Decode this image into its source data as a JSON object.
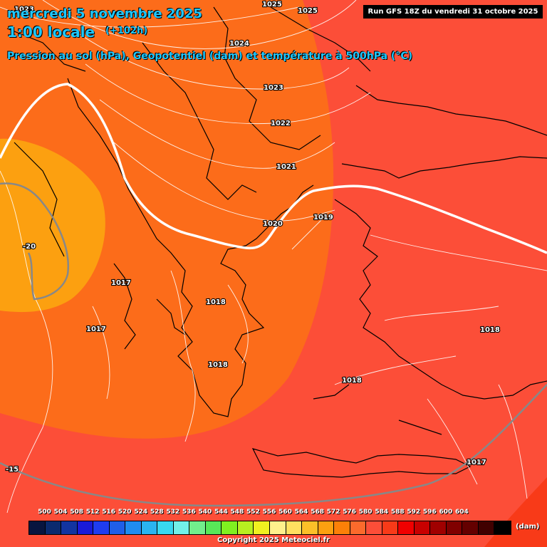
{
  "header": {
    "date": "mercredi 5 novembre 2025",
    "hour": "1:00 locale",
    "lead": "(+102h)",
    "description": "Pression au sol (hPa), Geopotentiel (dam) et température à 500hPa (°C)",
    "run": "Run GFS 18Z du vendredi 31 octobre 2025"
  },
  "pressure_labels": [
    "1025",
    "1025",
    "1024",
    "1023",
    "1023",
    "1022",
    "1021",
    "1020",
    "1019",
    "1018",
    "1018",
    "1018",
    "1018",
    "1018",
    "1017",
    "1017",
    "1017"
  ],
  "temperature_labels": [
    "-20",
    "-15"
  ],
  "legend": {
    "ticks": [
      "500",
      "504",
      "508",
      "512",
      "516",
      "520",
      "524",
      "528",
      "532",
      "536",
      "540",
      "544",
      "548",
      "552",
      "556",
      "560",
      "564",
      "568",
      "572",
      "576",
      "580",
      "584",
      "588",
      "592",
      "596",
      "600",
      "604"
    ],
    "colors": [
      "#08153f",
      "#0a2a6e",
      "#1234a0",
      "#1a1ad8",
      "#1f3cf0",
      "#1f5ee8",
      "#1f8cf0",
      "#2ab4f0",
      "#38d8f0",
      "#72f0e8",
      "#72ee8c",
      "#58e858",
      "#80f020",
      "#b8f020",
      "#f0f020",
      "#fff08c",
      "#ffe060",
      "#fcc028",
      "#fca010",
      "#fc8008",
      "#fc6a2c",
      "#fc4e38",
      "#f83a18",
      "#f00000",
      "#c80000",
      "#a00000",
      "#800000",
      "#640000",
      "#400000",
      "#000000"
    ],
    "unit": "(dam)"
  },
  "copyright": "Copyright 2025 Meteociel.fr"
}
